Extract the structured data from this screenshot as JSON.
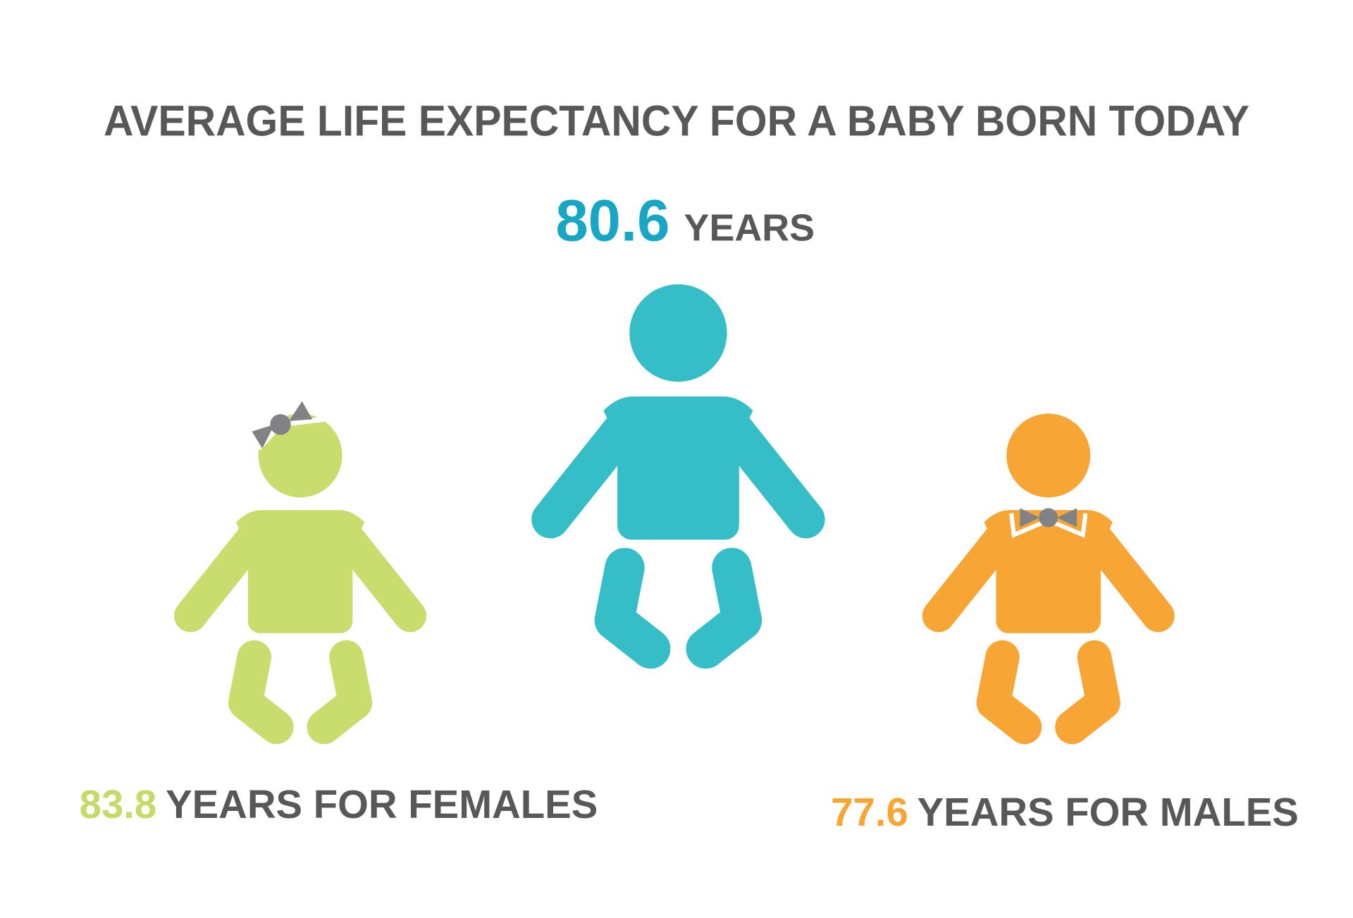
{
  "title": "AVERAGE LIFE EXPECTANCY FOR A BABY BORN TODAY",
  "overall": {
    "value": 80.6,
    "unit": "YEARS"
  },
  "females": {
    "value": 83.8,
    "label": "YEARS FOR FEMALES"
  },
  "males": {
    "value": 77.6,
    "label": "YEARS FOR MALES"
  }
}
